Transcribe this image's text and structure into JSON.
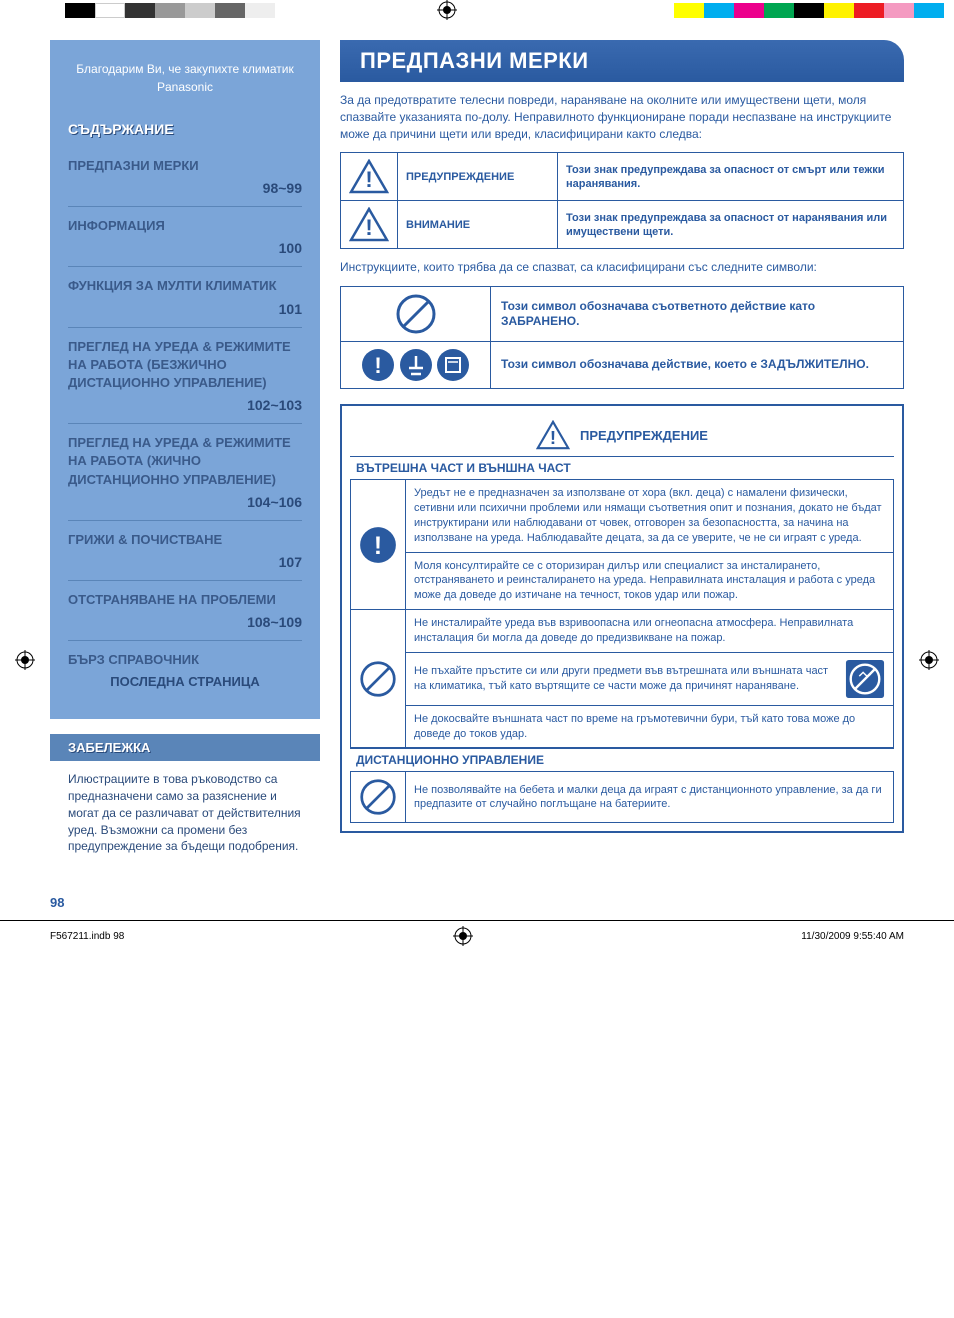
{
  "colorbar_top": [
    "#000000",
    "#ffffff",
    "#333333",
    "#999999",
    "#cccccc",
    "#666666",
    "#eeeeee"
  ],
  "colorbar_top_right": [
    "#ffff00",
    "#00aeef",
    "#ec008c",
    "#00a651",
    "#000000",
    "#fff200",
    "#ed1c24",
    "#f49ac1",
    "#00aeef"
  ],
  "sidebar": {
    "thanks": "Благодарим Ви, че закупихте климатик Panasonic",
    "toc_header": "СЪДЪРЖАНИЕ",
    "items": [
      {
        "label": "ПРЕДПАЗНИ МЕРКИ",
        "page": "98~99"
      },
      {
        "label": "ИНФОРМАЦИЯ",
        "page": "100"
      },
      {
        "label": "ФУНКЦИЯ ЗА МУЛТИ КЛИМАТИК",
        "page": "101"
      },
      {
        "label": "ПРЕГЛЕД НА УРЕДА & РЕЖИМИТЕ НА РАБОТА (БЕЗЖИЧНО ДИСТАЦИОННО УПРАВЛЕНИЕ)",
        "page": "102~103"
      },
      {
        "label": "ПРЕГЛЕД НА УРЕДА & РЕЖИМИТЕ НА РАБОТА (ЖИЧНО ДИСТАНЦИОННО УПРАВЛЕНИЕ)",
        "page": "104~106"
      },
      {
        "label": "ГРИЖИ & ПОЧИСТВАНЕ",
        "page": "107"
      },
      {
        "label": "ОТСТРАНЯВАНЕ НА ПРОБЛЕМИ",
        "page": "108~109"
      }
    ],
    "quick_ref": "БЪРЗ СПРАВОЧНИК",
    "last_page": "ПОСЛЕДНА СТРАНИЦА",
    "note_header": "ЗАБЕЛЕЖКА",
    "note_body": "Илюстрациите в това ръководство са предназначени само за разяснение и могат да се различават от действителния уред. Възможни са промени без предупреждение за бъдещи подобрения."
  },
  "main": {
    "title": "ПРЕДПАЗНИ МЕРКИ",
    "intro": "За да предотвратите телесни повреди, нараняване на околните или имуществени щети, моля спазвайте указанията по-долу. Неправилното функциониране поради неспазване на инструкциите може да причини щети или вреди, класифицирани както следва:",
    "signs": [
      {
        "label": "ПРЕДУПРЕЖДЕНИЕ",
        "desc": "Този знак предупреждава за опасност от смърт или тежки наранявания."
      },
      {
        "label": "ВНИМАНИЕ",
        "desc": "Този знак предупреждава за опасност от наранявания или имуществени щети."
      }
    ],
    "sym_intro": "Инструкциите, които трябва да се спазват, са класифицирани със следните символи:",
    "symbols": [
      {
        "desc": "Този символ обозначава съответното действие като ЗАБРАНЕНО."
      },
      {
        "desc": "Този символ обозначава действие, което е ЗАДЪЛЖИТЕЛНО."
      }
    ],
    "warning_label": "ПРЕДУПРЕЖДЕНИЕ",
    "section1_title": "ВЪТРЕШНА ЧАСТ И ВЪНШНА ЧАСТ",
    "warn1": [
      {
        "icon": "must",
        "text": "Уредът не е предназначен за използване от хора (вкл. деца) с намалени физически, сетивни или психични проблеми или нямащи съответния опит и познания, докато не бъдат инструктирани или наблюдавани от човек, отговорен за безопасността, за начина на използване на уреда. Наблюдавайте децата, за да се уверите, че не си играят с уреда."
      },
      {
        "icon": "",
        "text": "Моля консултирайте се с оторизиран дилър или специалист за инсталирането, отстраняването и реинсталирането на уреда. Неправилната инсталация и работа с уреда може да доведе до изтичане на течност, токов удар или пожар."
      },
      {
        "icon": "prohibit",
        "text": "Не инсталирайте уреда във взривоопасна или огнеопасна атмосфера. Неправилната инсталация би могла да доведе до предизвикване на пожар."
      },
      {
        "icon": "",
        "text": "Не пъхайте пръстите си или други предмети във вътрешната или външната част на климатика, тъй като въртящите се части може да причинят нараняване.",
        "right_icon": true
      },
      {
        "icon": "",
        "text": "Не докосвайте външната част по време на гръмотевични бури, тъй като това може до доведе до токов удар."
      }
    ],
    "section2_title": "ДИСТАНЦИОННО УПРАВЛЕНИЕ",
    "warn2": [
      {
        "icon": "prohibit",
        "text": "Не позволявайте на бебета и малки деца да играят с дистанционното управление, за да ги предпазите от случайно поглъщане на батериите."
      }
    ]
  },
  "page_number": "98",
  "footer": {
    "file": "F567211.indb   98",
    "date": "11/30/2009   9:55:40 AM"
  },
  "colors": {
    "primary": "#2a5aa0",
    "sidebar_bg": "#7ba5d8",
    "sidebar_dark": "#3a5a8a"
  }
}
